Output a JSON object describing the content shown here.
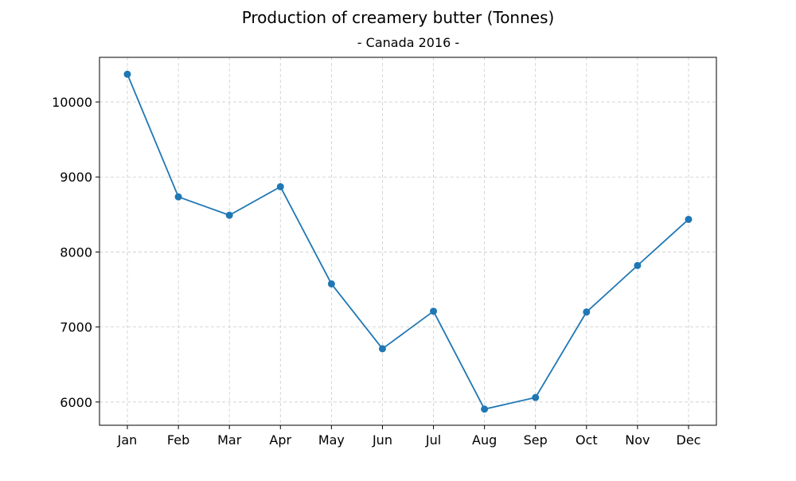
{
  "chart_data": {
    "type": "line",
    "title": "Production of creamery butter (Tonnes)",
    "subtitle": "- Canada 2016 -",
    "xlabel": "",
    "ylabel": "",
    "categories": [
      "Jan",
      "Feb",
      "Mar",
      "Apr",
      "May",
      "Jun",
      "Jul",
      "Aug",
      "Sep",
      "Oct",
      "Nov",
      "Dec"
    ],
    "series": [
      {
        "values": [
          10370,
          8735,
          8490,
          8870,
          7575,
          6710,
          7210,
          5905,
          6060,
          7200,
          7820,
          8435
        ],
        "color": "#1f77b4",
        "marker": "circle"
      }
    ],
    "ylim": [
      5690,
      10595
    ],
    "yticks": [
      6000,
      7000,
      8000,
      9000,
      10000
    ],
    "ytick_labels": [
      "6000",
      "7000",
      "8000",
      "9000",
      "10000"
    ],
    "grid": true,
    "grid_style": "dashed",
    "grid_color": "#cccccc",
    "legend": false
  }
}
